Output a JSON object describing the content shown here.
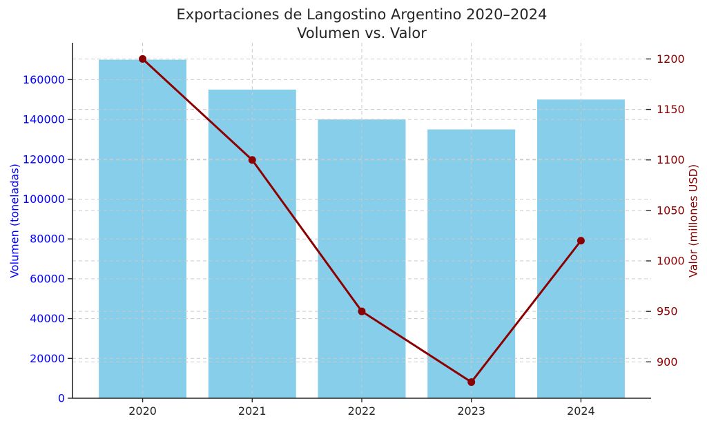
{
  "chart_data": {
    "type": "bar",
    "title": "Exportaciones de Langostino Argentino 2020–2024 Volumen vs. Valor",
    "title_lines": [
      "Exportaciones de Langostino Argentino 2020–2024",
      "Volumen vs. Valor"
    ],
    "categories": [
      "2020",
      "2021",
      "2022",
      "2023",
      "2024"
    ],
    "series": [
      {
        "name": "Volumen (toneladas)",
        "kind": "bar",
        "axis": "left",
        "color": "#87CEEB",
        "values": [
          170000,
          155000,
          140000,
          135000,
          150000
        ]
      },
      {
        "name": "Valor (millones USD)",
        "kind": "line",
        "axis": "right",
        "color": "#8B0000",
        "marker": "circle",
        "values": [
          1200,
          1100,
          950,
          880,
          1020
        ]
      }
    ],
    "left_axis": {
      "label": "Volumen (toneladas)",
      "tick_label_color": "#0000FF",
      "ticks": [
        0,
        20000,
        40000,
        60000,
        80000,
        100000,
        120000,
        140000,
        160000
      ],
      "ylim": [
        0,
        178500
      ]
    },
    "right_axis": {
      "label": "Valor (millones USD)",
      "tick_label_color": "#8B0000",
      "ticks": [
        900,
        950,
        1000,
        1050,
        1100,
        1150,
        1200
      ],
      "ylim": [
        864,
        1216
      ]
    },
    "xlabel": "",
    "grid": true,
    "grid_style": "dashed",
    "legend": "none"
  },
  "style": {
    "bar_color": "#87CEEB",
    "line_color": "#8B0000",
    "grid_color": "#C9C9C9",
    "axis_color": "#262626",
    "title_color": "#262626",
    "background": "#FFFFFF"
  }
}
